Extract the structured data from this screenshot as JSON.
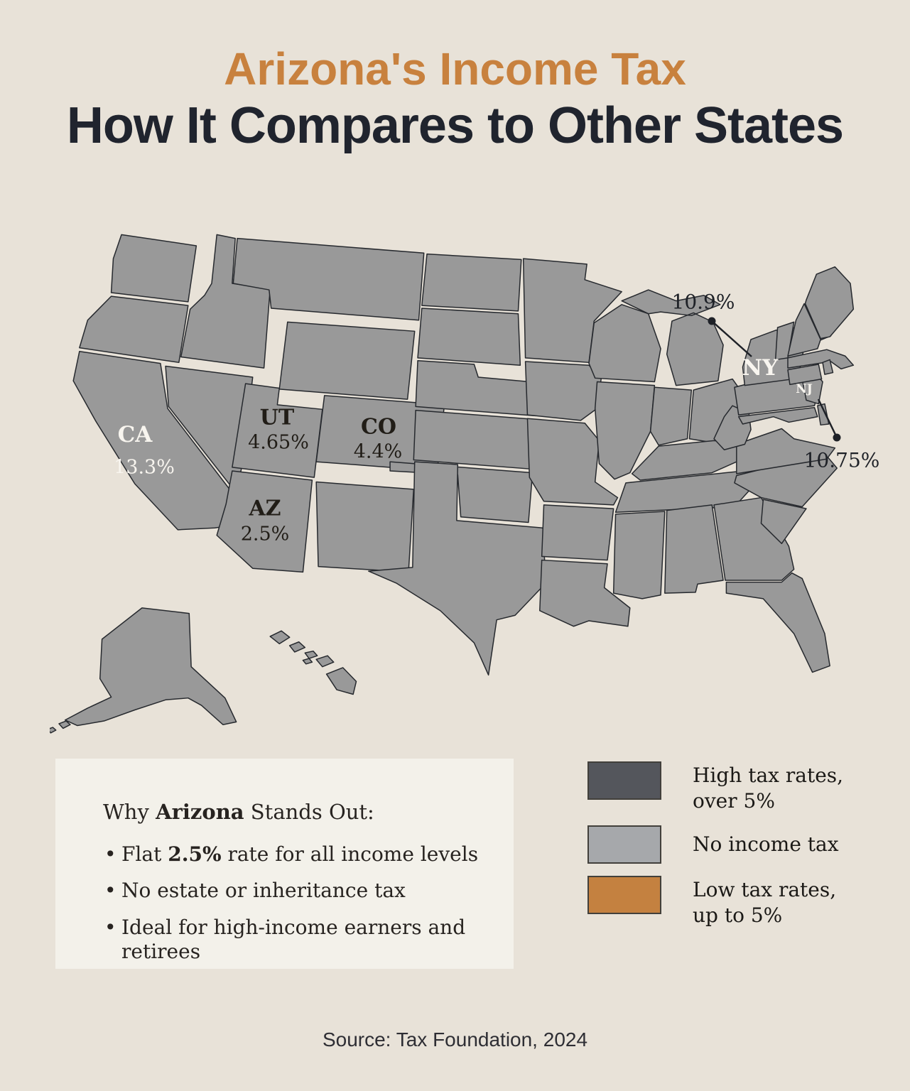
{
  "title": {
    "line1": "Arizona's Income Tax",
    "line2": "How It Compares to Other States"
  },
  "colors": {
    "background": "#e8e2d8",
    "panel": "#f3f1ea",
    "high": "#54565c",
    "none": "#a6a8ab",
    "low": "#c48140",
    "outline": "#26292e",
    "accent": "#c8813e",
    "heading_text": "#20242e",
    "body_text": "#272320",
    "label_on_dark": "#f8f5ef"
  },
  "map": {
    "states": {
      "WA": "none",
      "OR": "high",
      "CA": "high",
      "NV": "none",
      "ID": "high",
      "MT": "high",
      "WY": "none",
      "UT": "low",
      "CO": "low",
      "AZ": "low",
      "NM": "high",
      "ND": "low",
      "SD": "none",
      "NE": "high",
      "KS": "high",
      "OK": "low",
      "TX": "none",
      "MN": "high",
      "IA": "high",
      "MO": "low",
      "AR": "low",
      "LA": "low",
      "WI": "high",
      "IL": "low",
      "MI": "low",
      "IN": "low",
      "OH": "low",
      "KY": "low",
      "TN": "none",
      "MS": "low",
      "AL": "high",
      "GA": "high",
      "FL": "none",
      "SC": "high",
      "NC": "low",
      "VA": "high",
      "WV": "high",
      "PA": "low",
      "NY": "high",
      "NJ": "high",
      "MD": "high",
      "DE": "high",
      "VT": "high",
      "NH": "low",
      "ME": "high",
      "MA": "high",
      "CT": "high",
      "RI": "high",
      "AK": "none",
      "HI": "high"
    },
    "state_labels": {
      "ca": {
        "abbr": "CA",
        "rate": "13.3%"
      },
      "ut": {
        "abbr": "UT",
        "rate": "4.65%"
      },
      "co": {
        "abbr": "CO",
        "rate": "4.4%"
      },
      "az": {
        "abbr": "AZ",
        "rate": "2.5%"
      },
      "ny": {
        "abbr": "NY"
      },
      "nj": {
        "abbr": "NJ"
      }
    },
    "callouts": [
      {
        "state": "NY",
        "rate": "10.9%"
      },
      {
        "state": "NJ",
        "rate": "10.75%"
      }
    ]
  },
  "chart_data": {
    "type": "heatmap",
    "title": "Arizona's Income Tax — How It Compares to Other States",
    "legend_position": "bottom-right",
    "categories": [
      "high",
      "none",
      "low"
    ],
    "category_labels": [
      "High tax rates, over 5%",
      "No income tax",
      "Low tax rates, up to 5%"
    ],
    "labeled_rates": [
      {
        "state": "CA",
        "rate_pct": 13.3
      },
      {
        "state": "UT",
        "rate_pct": 4.65
      },
      {
        "state": "CO",
        "rate_pct": 4.4
      },
      {
        "state": "AZ",
        "rate_pct": 2.5
      },
      {
        "state": "NY",
        "rate_pct": 10.9
      },
      {
        "state": "NJ",
        "rate_pct": 10.75
      }
    ]
  },
  "info_box": {
    "heading_segments": [
      {
        "t": "Why ",
        "b": false
      },
      {
        "t": "Arizona",
        "b": true
      },
      {
        "t": " Stands Out:",
        "b": false
      }
    ],
    "bullets": [
      [
        {
          "t": "Flat ",
          "b": false
        },
        {
          "t": "2.5%",
          "b": true
        },
        {
          "t": " rate for all income levels",
          "b": false
        }
      ],
      [
        {
          "t": "No estate or inheritance tax",
          "b": false
        }
      ],
      [
        {
          "t": "Ideal for high-income earners and retirees",
          "b": false
        }
      ]
    ]
  },
  "legend": [
    {
      "category": "high",
      "line1": "High tax rates,",
      "line2": "over 5%"
    },
    {
      "category": "none",
      "line1": "No income tax",
      "line2": ""
    },
    {
      "category": "low",
      "line1": "Low tax rates,",
      "line2": "up to 5%"
    }
  ],
  "source": "Source: Tax Foundation, 2024"
}
